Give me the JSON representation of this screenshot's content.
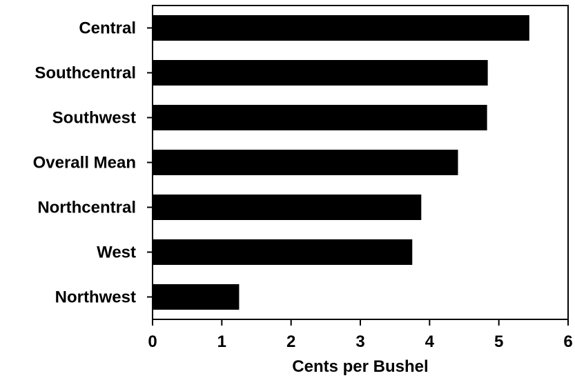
{
  "chart_data": {
    "type": "bar",
    "orientation": "horizontal",
    "categories": [
      "Central",
      "Southcentral",
      "Southwest",
      "Overall Mean",
      "Northcentral",
      "West",
      "Northwest"
    ],
    "values": [
      5.44,
      4.84,
      4.83,
      4.41,
      3.88,
      3.75,
      1.25
    ],
    "title": "",
    "xlabel": "Cents per Bushel",
    "ylabel": "",
    "xlim": [
      0,
      6
    ],
    "xticks": [
      "0",
      "1",
      "2",
      "3",
      "4",
      "5",
      "6"
    ],
    "grid": false,
    "bar_color": "#000000"
  }
}
